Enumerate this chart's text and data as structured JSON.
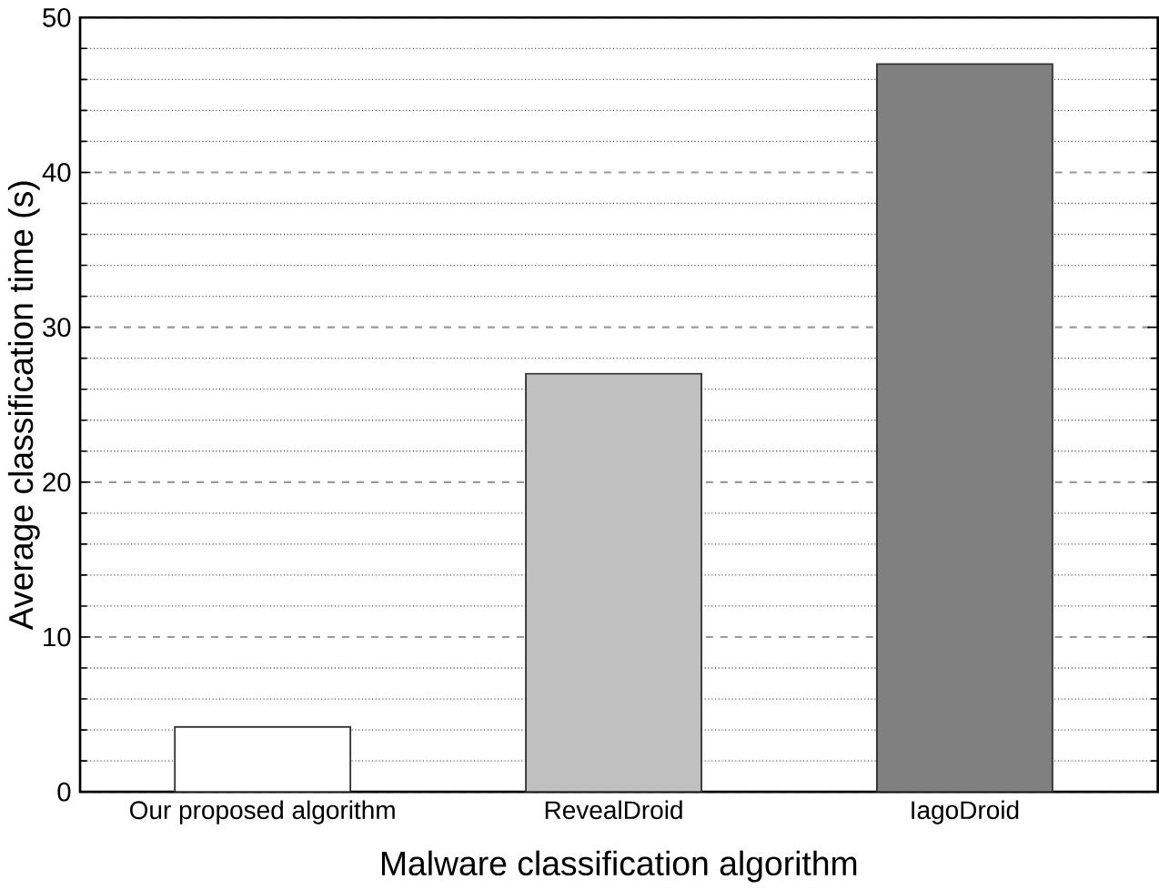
{
  "chart_data": {
    "type": "bar",
    "xlabel": "Malware classification algorithm",
    "ylabel": "Average classification time (s)",
    "categories": [
      "Our proposed algorithm",
      "RevealDroid",
      "IagoDroid"
    ],
    "values": [
      4.2,
      27,
      47
    ],
    "colors": [
      "#ffffff",
      "#c0c0c0",
      "#808080"
    ],
    "ylim": [
      0,
      50
    ],
    "yticks": [
      0,
      10,
      20,
      30,
      40,
      50
    ],
    "grid": "y"
  }
}
